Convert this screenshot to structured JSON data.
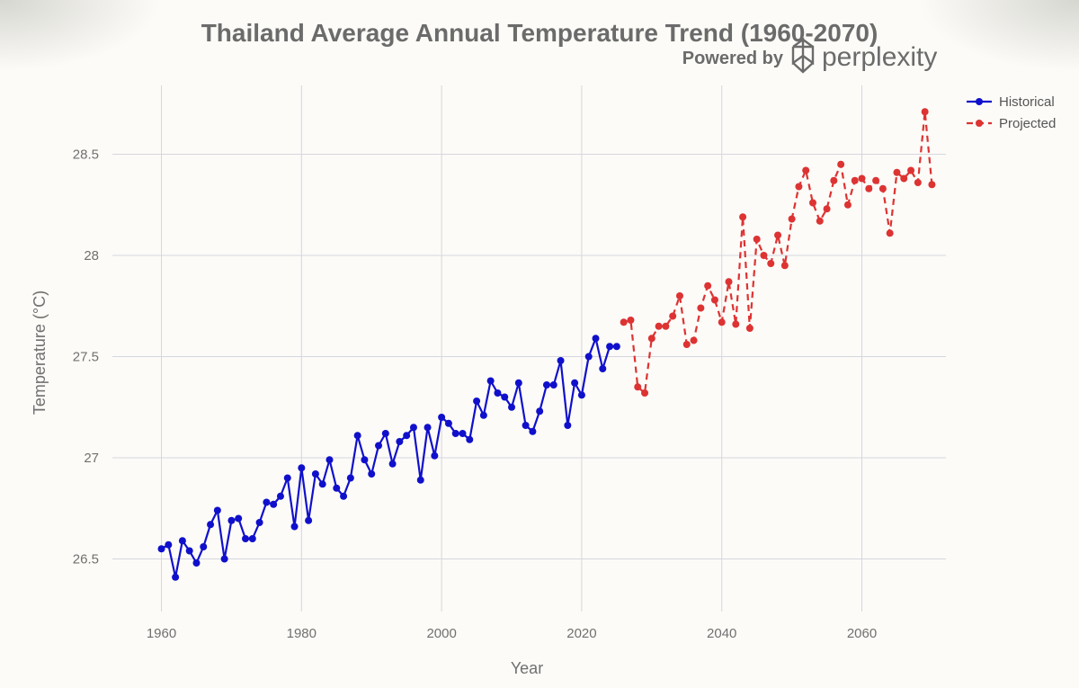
{
  "brand": {
    "powered_by": "Powered by",
    "name": "perplexity",
    "icon": "perplexity-logo-icon"
  },
  "chart_data": {
    "type": "line",
    "title": "Thailand Average Annual Temperature Trend (1960-2070)",
    "xlabel": "Year",
    "ylabel": "Temperature (°C)",
    "xlim": [
      1953,
      2072
    ],
    "ylim": [
      26.24,
      28.84
    ],
    "xticks": [
      1960,
      1980,
      2000,
      2020,
      2040,
      2060
    ],
    "yticks": [
      26.5,
      27,
      27.5,
      28,
      28.5
    ],
    "ytick_labels": [
      "26.5",
      "27",
      "27.5",
      "28",
      "28.5"
    ],
    "grid": true,
    "legend_position": "top-right",
    "series": [
      {
        "name": "Historical",
        "color": "#1010cc",
        "dash": "solid",
        "x": [
          1960,
          1961,
          1962,
          1963,
          1964,
          1965,
          1966,
          1967,
          1968,
          1969,
          1970,
          1971,
          1972,
          1973,
          1974,
          1975,
          1976,
          1977,
          1978,
          1979,
          1980,
          1981,
          1982,
          1983,
          1984,
          1985,
          1986,
          1987,
          1988,
          1989,
          1990,
          1991,
          1992,
          1993,
          1994,
          1995,
          1996,
          1997,
          1998,
          1999,
          2000,
          2001,
          2002,
          2003,
          2004,
          2005,
          2006,
          2007,
          2008,
          2009,
          2010,
          2011,
          2012,
          2013,
          2014,
          2015,
          2016,
          2017,
          2018,
          2019,
          2020,
          2021,
          2022,
          2023,
          2024,
          2025
        ],
        "y": [
          26.55,
          26.57,
          26.41,
          26.59,
          26.54,
          26.48,
          26.56,
          26.67,
          26.74,
          26.5,
          26.69,
          26.7,
          26.6,
          26.6,
          26.68,
          26.78,
          26.77,
          26.81,
          26.9,
          26.66,
          26.95,
          26.69,
          26.92,
          26.87,
          26.99,
          26.85,
          26.81,
          26.9,
          27.11,
          26.99,
          26.92,
          27.06,
          27.12,
          26.97,
          27.08,
          27.11,
          27.15,
          26.89,
          27.15,
          27.01,
          27.2,
          27.17,
          27.12,
          27.12,
          27.09,
          27.28,
          27.21,
          27.38,
          27.32,
          27.3,
          27.25,
          27.37,
          27.16,
          27.13,
          27.23,
          27.36,
          27.36,
          27.48,
          27.16,
          27.37,
          27.31,
          27.5,
          27.59,
          27.44,
          27.55,
          27.55
        ]
      },
      {
        "name": "Projected",
        "color": "#dd3333",
        "dash": "dashed",
        "x": [
          2026,
          2027,
          2028,
          2029,
          2030,
          2031,
          2032,
          2033,
          2034,
          2035,
          2036,
          2037,
          2038,
          2039,
          2040,
          2041,
          2042,
          2043,
          2044,
          2045,
          2046,
          2047,
          2048,
          2049,
          2050,
          2051,
          2052,
          2053,
          2054,
          2055,
          2056,
          2057,
          2058,
          2059,
          2060,
          2061,
          2062,
          2063,
          2064,
          2065,
          2066,
          2067,
          2068,
          2069,
          2070
        ],
        "y": [
          27.67,
          27.68,
          27.35,
          27.32,
          27.59,
          27.65,
          27.65,
          27.7,
          27.8,
          27.56,
          27.58,
          27.74,
          27.85,
          27.78,
          27.67,
          27.87,
          27.66,
          28.19,
          27.64,
          28.08,
          28.0,
          27.96,
          28.1,
          27.95,
          28.18,
          28.34,
          28.42,
          28.26,
          28.17,
          28.23,
          28.37,
          28.45,
          28.25,
          28.37,
          28.38,
          28.33,
          28.37,
          28.33,
          28.11,
          28.41,
          28.38,
          28.42,
          28.36,
          28.71,
          28.35
        ]
      }
    ]
  }
}
